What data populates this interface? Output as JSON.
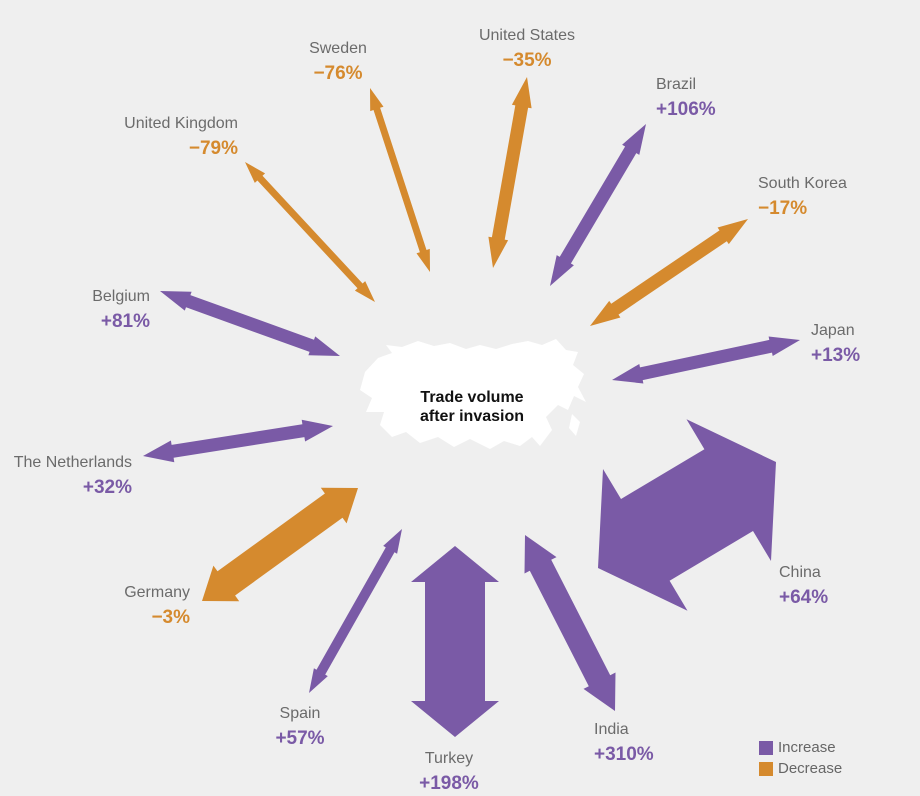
{
  "chart_data": {
    "type": "radial-arrows",
    "title": "",
    "center_label_line1": "Trade volume",
    "center_label_line2": "after invasion",
    "colors": {
      "increase": "#7a5aa6",
      "decrease": "#d58a2e"
    },
    "legend": {
      "increase_label": "Increase",
      "decrease_label": "Decrease"
    },
    "series": [
      {
        "country": "United States",
        "change_label": "−35%",
        "change": -35,
        "direction": "decrease"
      },
      {
        "country": "Brazil",
        "change_label": "+106%",
        "change": 106,
        "direction": "increase"
      },
      {
        "country": "South Korea",
        "change_label": "−17%",
        "change": -17,
        "direction": "decrease"
      },
      {
        "country": "Japan",
        "change_label": "+13%",
        "change": 13,
        "direction": "increase"
      },
      {
        "country": "China",
        "change_label": "+64%",
        "change": 64,
        "direction": "increase"
      },
      {
        "country": "India",
        "change_label": "+310%",
        "change": 310,
        "direction": "increase"
      },
      {
        "country": "Turkey",
        "change_label": "+198%",
        "change": 198,
        "direction": "increase"
      },
      {
        "country": "Spain",
        "change_label": "+57%",
        "change": 57,
        "direction": "increase"
      },
      {
        "country": "Germany",
        "change_label": "−3%",
        "change": -3,
        "direction": "decrease"
      },
      {
        "country": "The Netherlands",
        "change_label": "+32%",
        "change": 32,
        "direction": "increase"
      },
      {
        "country": "Belgium",
        "change_label": "+81%",
        "change": 81,
        "direction": "increase"
      },
      {
        "country": "United Kingdom",
        "change_label": "−79%",
        "change": -79,
        "direction": "decrease"
      },
      {
        "country": "Sweden",
        "change_label": "−76%",
        "change": -76,
        "direction": "decrease"
      }
    ]
  }
}
